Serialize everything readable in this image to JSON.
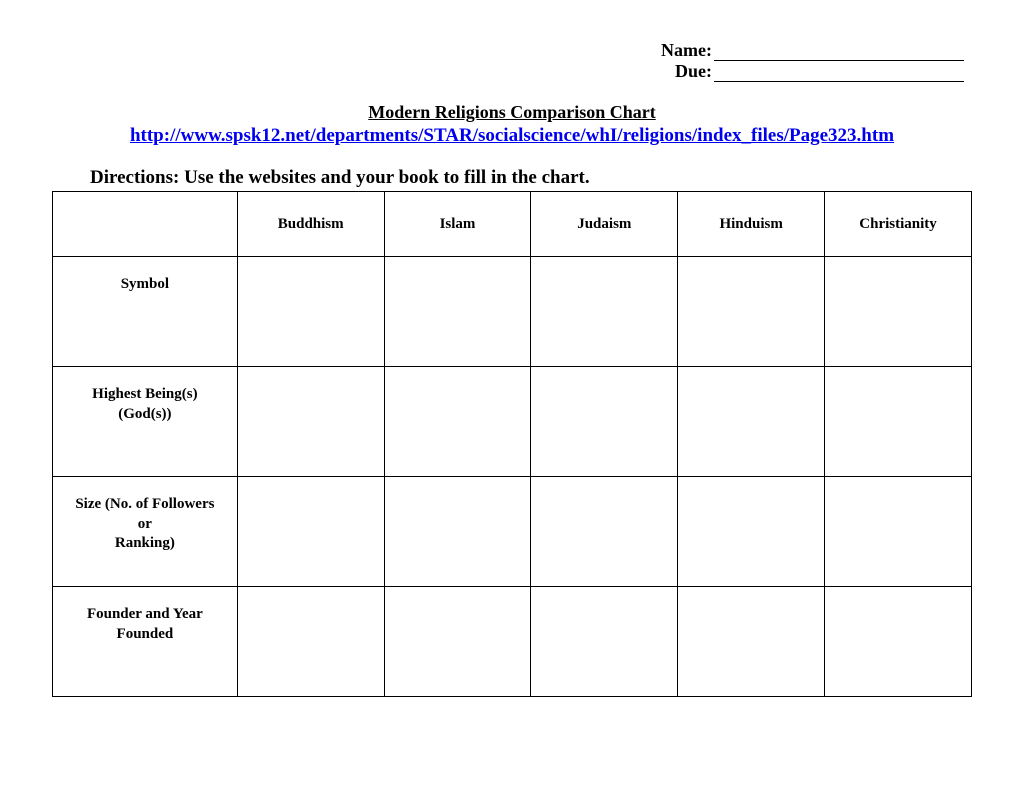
{
  "header": {
    "name_label": "Name:",
    "due_label": "Due:"
  },
  "title": "Modern Religions Comparison Chart",
  "link": {
    "text": "http://www.spsk12.net/departments/STAR/socialscience/whI/religions/index_files/Page323.htm"
  },
  "directions": "Directions:  Use the websites and your book to fill in the chart.",
  "table": {
    "columns": [
      "Buddhism",
      "Islam",
      "Judaism",
      "Hinduism",
      "Christianity"
    ],
    "rows": [
      {
        "label": "Symbol",
        "cells": [
          "",
          "",
          "",
          "",
          ""
        ]
      },
      {
        "label": "Highest Being(s)\n(God(s))",
        "cells": [
          "",
          "",
          "",
          "",
          ""
        ]
      },
      {
        "label": "Size (No. of Followers\nor\nRanking)",
        "cells": [
          "",
          "",
          "",
          "",
          ""
        ]
      },
      {
        "label": "Founder and Year\nFounded",
        "cells": [
          "",
          "",
          "",
          "",
          ""
        ]
      }
    ]
  },
  "style": {
    "font_family": "Times New Roman",
    "link_color": "#0000ee",
    "border_color": "#000000",
    "background_color": "#ffffff",
    "title_fontsize": 18,
    "header_fontsize": 15,
    "directions_fontsize": 19
  }
}
